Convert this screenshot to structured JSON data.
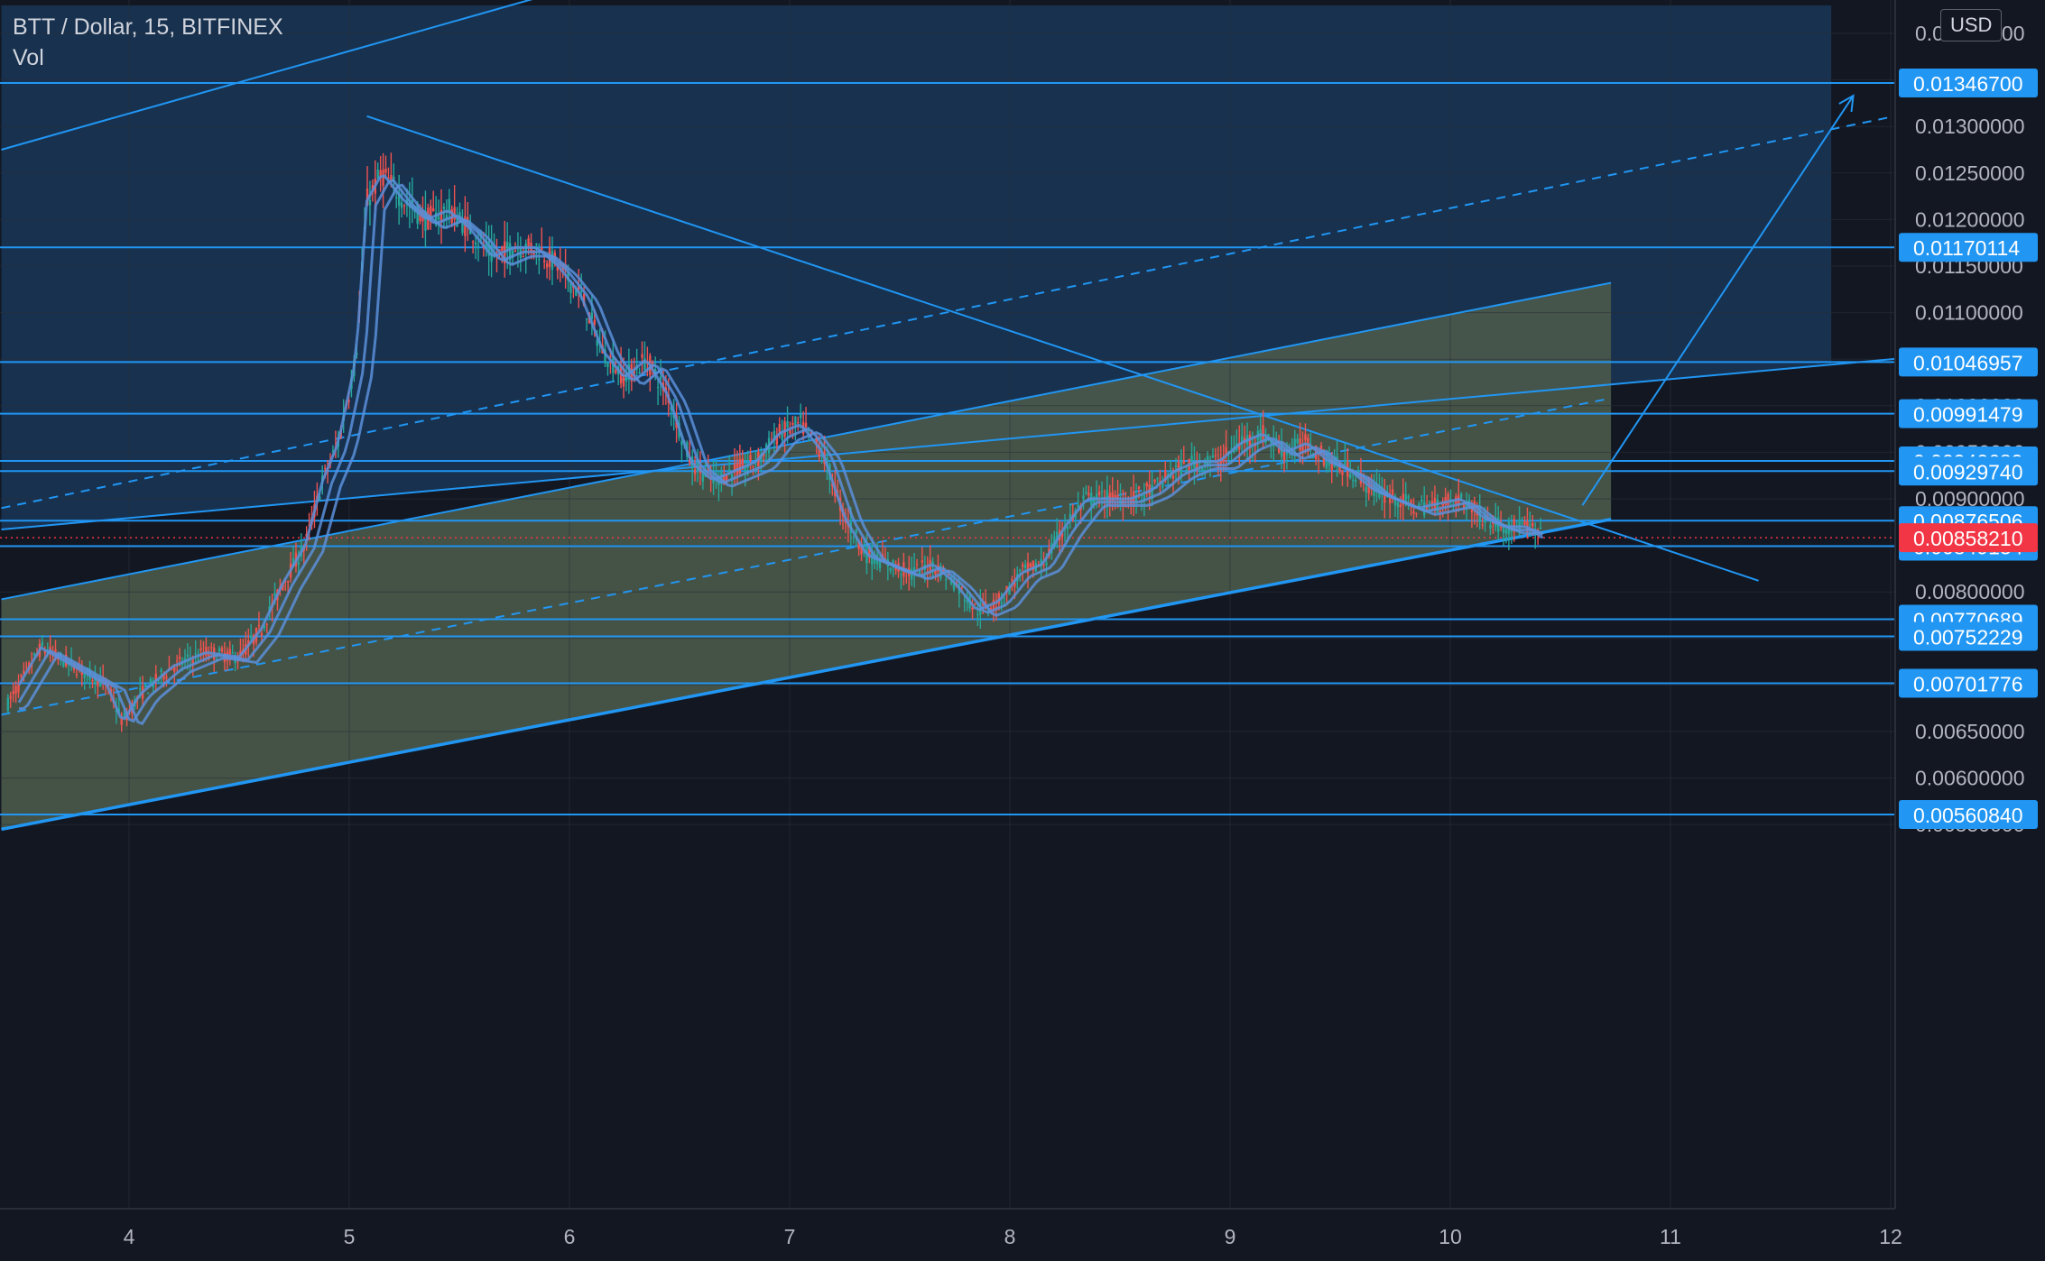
{
  "header": {
    "symbol": "BTT / Dollar, 15, BITFINEX",
    "indicator": "Vol",
    "currency_button": "USD"
  },
  "colors": {
    "background": "#131722",
    "line": "#2196f3",
    "upper_zone": "#1a3b5f",
    "channel_fill": "#4b5a4a",
    "candle_up": "#26a69a",
    "candle_down": "#ef5350",
    "price_label_bg": "#2196f3",
    "current_price_bg": "#f23645",
    "ma_ribbon": "#5b8fd9"
  },
  "chart_data": {
    "type": "line",
    "title": "BTT / Dollar, 15, BITFINEX",
    "x_ticks": [
      "4",
      "5",
      "6",
      "7",
      "8",
      "9",
      "10",
      "11",
      "12"
    ],
    "y_ticks": [
      "0.00550000",
      "0.00600000",
      "0.00650000",
      "0.00700000",
      "0.00750000",
      "0.00800000",
      "0.00850000",
      "0.00900000",
      "0.00950000",
      "0.01000000",
      "0.01050000",
      "0.01100000",
      "0.01150000",
      "0.01200000",
      "0.01250000",
      "0.01300000",
      "0.01350000",
      "0.01400000"
    ],
    "ylim": [
      0.0055,
      0.0143
    ],
    "xlim": [
      3.42,
      12.1
    ],
    "horizontal_levels": [
      "0.01346700",
      "0.01170114",
      "0.01046957",
      "0.00991479",
      "0.00940689",
      "0.00929740",
      "0.00876506",
      "0.00849134",
      "0.00770689",
      "0.00752229",
      "0.00701776",
      "0.00560840"
    ],
    "current_price": "0.00858210",
    "series": [
      {
        "values": [
          [
            3.45,
            0.0068
          ],
          [
            3.6,
            0.0074
          ],
          [
            3.75,
            0.0072
          ],
          [
            3.9,
            0.007
          ],
          [
            3.97,
            0.0066
          ],
          [
            4.05,
            0.0069
          ],
          [
            4.2,
            0.0072
          ],
          [
            4.35,
            0.00735
          ],
          [
            4.5,
            0.0073
          ],
          [
            4.6,
            0.0076
          ],
          [
            4.7,
            0.0081
          ],
          [
            4.8,
            0.0085
          ],
          [
            4.88,
            0.0092
          ],
          [
            4.95,
            0.0096
          ],
          [
            5.03,
            0.0105
          ],
          [
            5.08,
            0.0122
          ],
          [
            5.15,
            0.0125
          ],
          [
            5.25,
            0.0122
          ],
          [
            5.35,
            0.012
          ],
          [
            5.45,
            0.0121
          ],
          [
            5.55,
            0.0119
          ],
          [
            5.65,
            0.0116
          ],
          [
            5.75,
            0.0117
          ],
          [
            5.85,
            0.0117
          ],
          [
            5.95,
            0.0115
          ],
          [
            6.05,
            0.0112
          ],
          [
            6.15,
            0.0106
          ],
          [
            6.25,
            0.0103
          ],
          [
            6.35,
            0.0105
          ],
          [
            6.45,
            0.0101
          ],
          [
            6.55,
            0.0094
          ],
          [
            6.65,
            0.0092
          ],
          [
            6.75,
            0.0093
          ],
          [
            6.85,
            0.0094
          ],
          [
            6.95,
            0.0097
          ],
          [
            7.05,
            0.0098
          ],
          [
            7.15,
            0.0095
          ],
          [
            7.25,
            0.0088
          ],
          [
            7.35,
            0.0084
          ],
          [
            7.45,
            0.0083
          ],
          [
            7.55,
            0.0082
          ],
          [
            7.65,
            0.0083
          ],
          [
            7.75,
            0.0081
          ],
          [
            7.85,
            0.0078
          ],
          [
            7.95,
            0.0079
          ],
          [
            8.05,
            0.0082
          ],
          [
            8.15,
            0.0083
          ],
          [
            8.25,
            0.0087
          ],
          [
            8.35,
            0.009
          ],
          [
            8.45,
            0.009
          ],
          [
            8.55,
            0.009
          ],
          [
            8.65,
            0.0091
          ],
          [
            8.75,
            0.0093
          ],
          [
            8.85,
            0.0094
          ],
          [
            8.95,
            0.0094
          ],
          [
            9.05,
            0.0096
          ],
          [
            9.15,
            0.0097
          ],
          [
            9.25,
            0.0095
          ],
          [
            9.35,
            0.0096
          ],
          [
            9.45,
            0.0094
          ],
          [
            9.55,
            0.0093
          ],
          [
            9.65,
            0.0091
          ],
          [
            9.75,
            0.009
          ],
          [
            9.85,
            0.0089
          ],
          [
            9.95,
            0.00895
          ],
          [
            10.05,
            0.009
          ],
          [
            10.15,
            0.0088
          ],
          [
            10.25,
            0.0087
          ],
          [
            10.35,
            0.0087
          ],
          [
            10.42,
            0.00858
          ]
        ]
      }
    ],
    "drawings": [
      {
        "kind": "channel-lower",
        "points": [
          [
            3.42,
            0.00545
          ],
          [
            10.73,
            0.00878
          ]
        ]
      },
      {
        "kind": "channel-upper",
        "points": [
          [
            3.42,
            0.00792
          ],
          [
            10.73,
            0.01132
          ]
        ]
      },
      {
        "kind": "channel-mid-dashed",
        "points": [
          [
            3.42,
            0.00668
          ],
          [
            10.73,
            0.01008
          ]
        ]
      },
      {
        "kind": "big-channel-lower",
        "points": [
          [
            3.42,
            0.00867
          ],
          [
            12.1,
            0.01052
          ]
        ]
      },
      {
        "kind": "big-channel-upper",
        "points": [
          [
            3.42,
            0.01275
          ],
          [
            5.85,
            0.01438
          ]
        ]
      },
      {
        "kind": "big-channel-mid-dashed",
        "points": [
          [
            3.42,
            0.0089
          ],
          [
            12.1,
            0.01315
          ]
        ]
      },
      {
        "kind": "descending-trendline",
        "points": [
          [
            5.08,
            0.01311
          ],
          [
            11.4,
            0.00812
          ]
        ]
      },
      {
        "kind": "projection-arrow",
        "points": [
          [
            10.6,
            0.00893
          ],
          [
            11.83,
            0.01333
          ]
        ]
      }
    ]
  }
}
